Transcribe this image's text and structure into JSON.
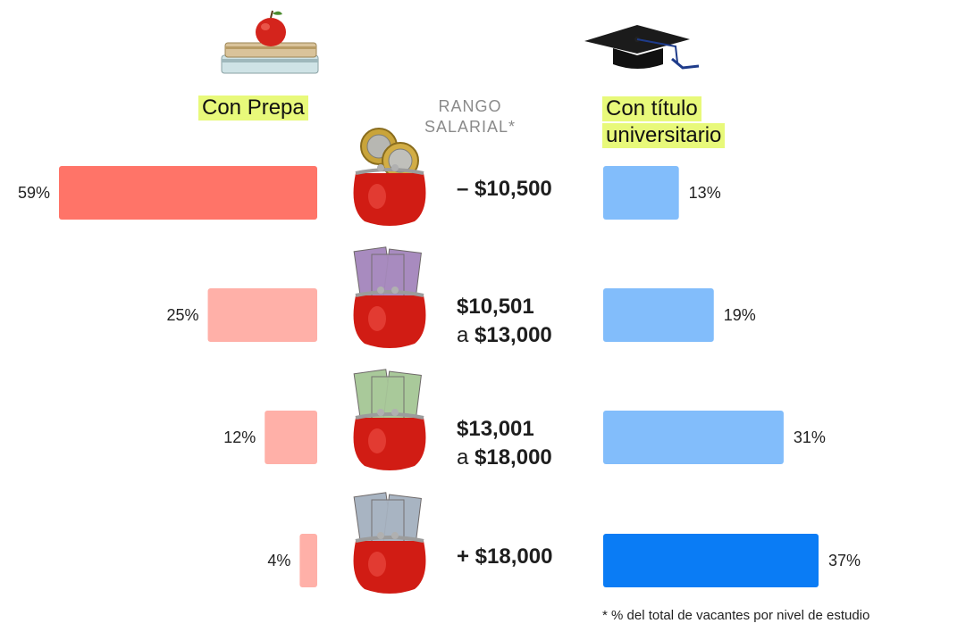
{
  "header": {
    "left": "Con Prepa",
    "middle_line1": "RANGO",
    "middle_line2": "SALARIAL*",
    "right_line1": "Con título",
    "right_line2": "universitario"
  },
  "footnote": "* % del total de vacantes por nivel de estudio",
  "icons": {
    "left": "books-apple-icon",
    "right": "graduation-cap-icon",
    "rows": [
      "purse-coins-icon",
      "purse-100-bills-icon",
      "purse-200-bills-icon",
      "purse-500-bills-icon"
    ]
  },
  "colors": {
    "left_strong": "#ff7468",
    "left_light": "#ffb0a8",
    "right_light": "#82bdfb",
    "right_strong": "#0a7cf5",
    "highlight": "#e8f97a"
  },
  "chart_data": {
    "type": "bar",
    "categories": [
      {
        "line1": "– $10,500",
        "line2_pre": "",
        "line2": ""
      },
      {
        "line1": "$10,501",
        "line2_pre": "a ",
        "line2": "$13,000"
      },
      {
        "line1": "$13,001",
        "line2_pre": "a ",
        "line2": "$18,000"
      },
      {
        "line1": "+ $18,000",
        "line2_pre": "",
        "line2": ""
      }
    ],
    "series": [
      {
        "name": "Con Prepa",
        "values": [
          59,
          25,
          12,
          4
        ],
        "labels": [
          "59%",
          "25%",
          "12%",
          "4%"
        ]
      },
      {
        "name": "Con título universitario",
        "values": [
          13,
          19,
          31,
          37
        ],
        "labels": [
          "13%",
          "19%",
          "31%",
          "37%"
        ]
      }
    ],
    "unit": "%"
  }
}
